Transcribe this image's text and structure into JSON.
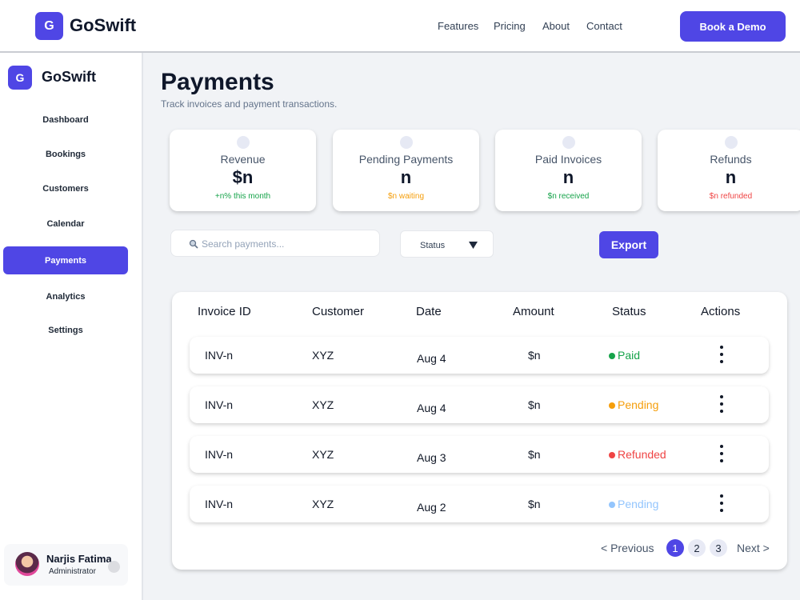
{
  "header": {
    "logo_letter": "G",
    "brand": "GoSwift",
    "nav": [
      "Features",
      "Pricing",
      "About",
      "Contact"
    ],
    "cta": "Book a Demo"
  },
  "sidebar": {
    "logo_letter": "G",
    "brand": "GoSwift",
    "menu": [
      "Dashboard",
      "Bookings",
      "Customers",
      "Calendar",
      "Payments",
      "Analytics",
      "Settings"
    ],
    "active": 4,
    "user": {
      "name": "Narjis Fatima",
      "role": "Administrator"
    }
  },
  "main": {
    "title": "Payments",
    "subtitle": "Track invoices and payment transactions.",
    "cards": [
      {
        "label": "Revenue",
        "value": "$n",
        "note": "+n% this month",
        "color": "#16a34a"
      },
      {
        "label": "Pending Payments",
        "value": "n",
        "note": "$n waiting",
        "color": "#f59e0b"
      },
      {
        "label": "Paid Invoices",
        "value": "n",
        "note": "$n received",
        "color": "#16a34a"
      },
      {
        "label": "Refunds",
        "value": "n",
        "note": "$n refunded",
        "color": "#ef4444"
      }
    ],
    "search_placeholder": "Search payments...",
    "filter": "Status",
    "export": "Export"
  },
  "table": {
    "columns": [
      "Invoice ID",
      "Customer",
      "Date",
      "Amount",
      "Status",
      "Actions"
    ],
    "rows": [
      {
        "cells": [
          "INV-n",
          "XYZ",
          "Aug 4",
          "$n"
        ],
        "status": "Paid",
        "status_color": "#16a34a"
      },
      {
        "cells": [
          "INV-n",
          "XYZ",
          "Aug 4",
          "$n"
        ],
        "status": "Pending",
        "status_color": "#f59e0b"
      },
      {
        "cells": [
          "INV-n",
          "XYZ",
          "Aug 3",
          "$n"
        ],
        "status": "Refunded",
        "status_color": "#ef4444"
      },
      {
        "cells": [
          "INV-n",
          "XYZ",
          "Aug 2",
          "$n"
        ],
        "status": "Pending",
        "status_color": "#93c5fd"
      }
    ]
  },
  "pagination": {
    "previous": "< Previous",
    "pages": [
      1,
      2,
      3
    ],
    "current": 1,
    "next": "Next >"
  }
}
